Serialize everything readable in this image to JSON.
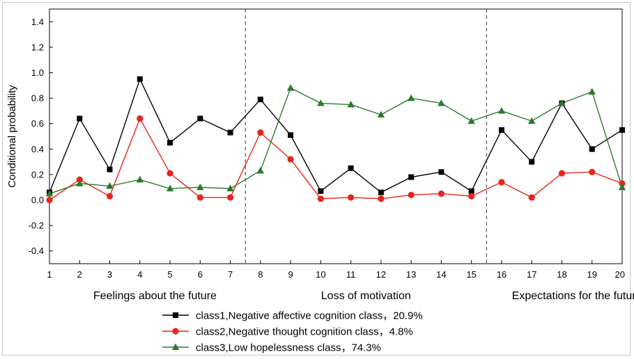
{
  "chart_data": {
    "type": "line",
    "title": "",
    "xlabel": "",
    "ylabel": "Conditional probability",
    "x": [
      1,
      2,
      3,
      4,
      5,
      6,
      7,
      8,
      9,
      10,
      11,
      12,
      13,
      14,
      15,
      16,
      17,
      18,
      19,
      20
    ],
    "xlim": [
      1,
      20
    ],
    "ylim": [
      -0.5,
      1.5
    ],
    "yticks": [
      -0.4,
      -0.2,
      0.0,
      0.2,
      0.4,
      0.6,
      0.8,
      1.0,
      1.2,
      1.4
    ],
    "ytick_labels": [
      "-0.4",
      "-0.2",
      "0.0",
      "0.2",
      "0.4",
      "0.6",
      "0.8",
      "1.0",
      "1.2",
      "1.4"
    ],
    "xtick_labels": [
      "1",
      "2",
      "3",
      "4",
      "5",
      "6",
      "7",
      "8",
      "9",
      "10",
      "11",
      "12",
      "13",
      "14",
      "15",
      "16",
      "17",
      "18",
      "19",
      "20"
    ],
    "dividers_at": [
      7.5,
      15.5
    ],
    "groups": [
      {
        "label": "Feelings about the future",
        "center": 4.5
      },
      {
        "label": "Loss of motivation",
        "center": 11.5
      },
      {
        "label": "Expectations for the future",
        "center": 18.5
      }
    ],
    "series": [
      {
        "name": "class1,Negative affective cognition class，20.9%",
        "color": "#000000",
        "marker": "square",
        "values": [
          0.06,
          0.64,
          0.24,
          0.95,
          0.45,
          0.64,
          0.53,
          0.79,
          0.51,
          0.07,
          0.25,
          0.06,
          0.18,
          0.22,
          0.07,
          0.55,
          0.3,
          0.76,
          0.4,
          0.55
        ]
      },
      {
        "name": "class2,Negative thought cognition class，4.8%",
        "color": "#e8241c",
        "marker": "circle",
        "values": [
          0.0,
          0.16,
          0.03,
          0.64,
          0.21,
          0.02,
          0.02,
          0.53,
          0.32,
          0.01,
          0.02,
          0.01,
          0.04,
          0.05,
          0.03,
          0.14,
          0.02,
          0.21,
          0.22,
          0.13
        ]
      },
      {
        "name": "class3,Low hopelessness class，74.3%",
        "color": "#2b7a2b",
        "marker": "triangle",
        "values": [
          0.05,
          0.13,
          0.11,
          0.16,
          0.09,
          0.1,
          0.09,
          0.23,
          0.88,
          0.76,
          0.75,
          0.67,
          0.8,
          0.76,
          0.62,
          0.7,
          0.62,
          0.76,
          0.85,
          0.1
        ]
      }
    ],
    "grid": false,
    "legend_position": "bottom-center"
  }
}
